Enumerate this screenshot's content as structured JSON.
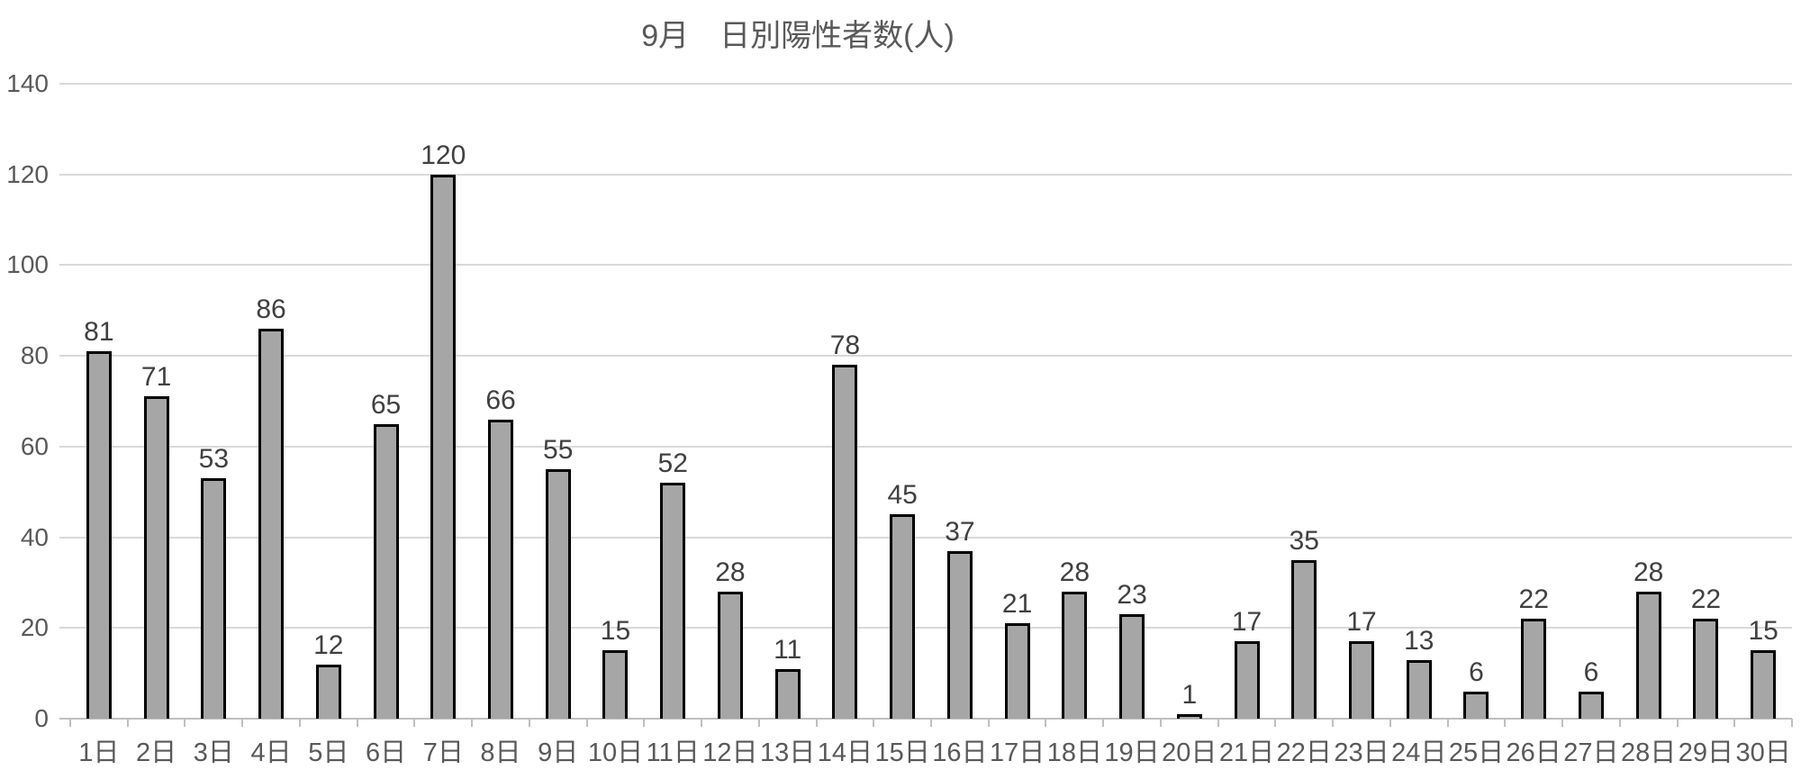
{
  "chart_data": {
    "type": "bar",
    "title": "9月　日別陽性者数(人)",
    "categories": [
      "1日",
      "2日",
      "3日",
      "4日",
      "5日",
      "6日",
      "7日",
      "8日",
      "9日",
      "10日",
      "11日",
      "12日",
      "13日",
      "14日",
      "15日",
      "16日",
      "17日",
      "18日",
      "19日",
      "20日",
      "21日",
      "22日",
      "23日",
      "24日",
      "25日",
      "26日",
      "27日",
      "28日",
      "29日",
      "30日"
    ],
    "values": [
      81,
      71,
      53,
      86,
      12,
      65,
      120,
      66,
      55,
      15,
      52,
      28,
      11,
      78,
      45,
      37,
      21,
      28,
      23,
      1,
      17,
      35,
      17,
      13,
      6,
      22,
      6,
      28,
      22,
      15
    ],
    "xlabel": "",
    "ylabel": "",
    "ylim": [
      0,
      140
    ],
    "yticks": [
      0,
      20,
      40,
      60,
      80,
      100,
      120,
      140
    ],
    "grid": true,
    "legend": false,
    "data_labels": true,
    "colors": {
      "bar_fill": "#a6a6a6",
      "bar_border": "#000000",
      "gridline": "#d9d9d9",
      "axis_line": "#bfbfbf",
      "title_text": "#595959",
      "axis_text": "#595959",
      "data_label_text": "#404040",
      "background": "#ffffff"
    }
  }
}
